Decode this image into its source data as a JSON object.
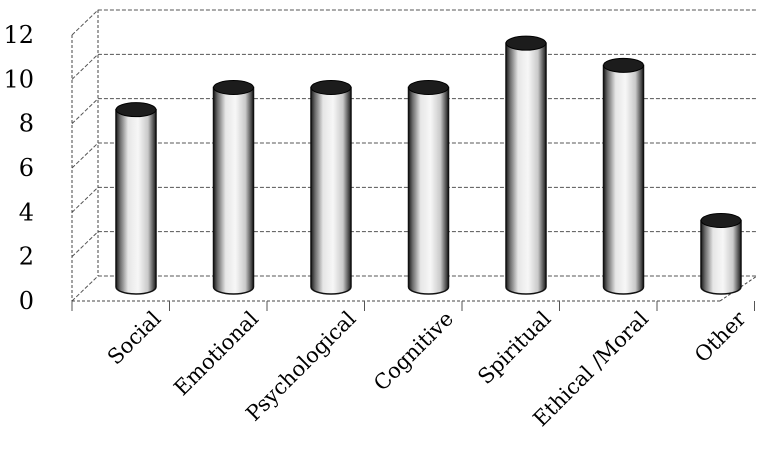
{
  "chart_data": {
    "type": "bar",
    "categories": [
      "Social",
      "Emotional",
      "Psychological",
      "Cognitive",
      "Spiritual",
      "Ethical /Moral",
      "Other"
    ],
    "values": [
      8,
      9,
      9,
      9,
      11,
      10,
      3
    ],
    "ylim": [
      0,
      12
    ],
    "yticks": [
      "0",
      "2",
      "4",
      "6",
      "8",
      "10",
      "12"
    ],
    "grid": true,
    "bar_style": "3d-cylinder",
    "colors": {
      "bar_light": "#f2f2f2",
      "bar_dark": "#1a1a1a",
      "grid": "#555555"
    }
  }
}
